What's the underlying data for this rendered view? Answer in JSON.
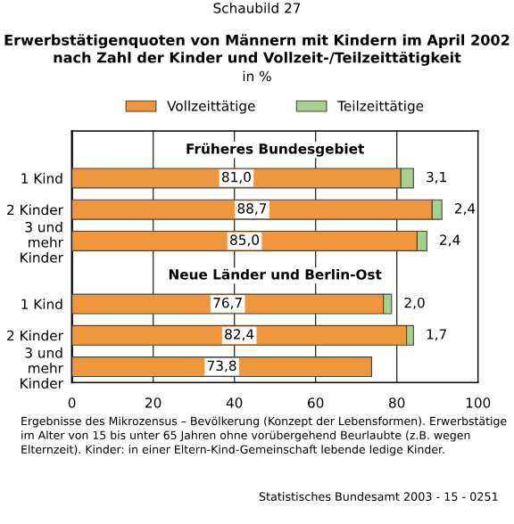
{
  "chart_data": {
    "type": "bar",
    "orientation": "horizontal",
    "stacked": true,
    "title": "Erwerbstätigenquoten von Männern mit Kindern im April 2002\nnach Zahl der Kinder und Vollzeit-/Teilzeittätigkeit",
    "subtitle": "in %",
    "categories": [
      null,
      "1 Kind",
      "2 Kinder",
      "3 und\nmehr\nKinder",
      null,
      "1 Kind",
      "2 Kinder",
      "3 und\nmehr\nKinder"
    ],
    "series": [
      {
        "name": "Vollzeittätige",
        "color": "#f0963c",
        "values": [
          null,
          81.0,
          88.7,
          85.0,
          null,
          76.7,
          82.4,
          73.8
        ],
        "value_labels": [
          null,
          "81,0",
          "88,7",
          "85,0",
          null,
          "76,7",
          "82,4",
          "73,8"
        ]
      },
      {
        "name": "Teilzeittätige",
        "color": "#a8d08d",
        "values": [
          null,
          3.1,
          2.4,
          2.4,
          null,
          2.0,
          1.7,
          null
        ],
        "value_labels": [
          null,
          "3,1",
          "2,4",
          "2,4",
          null,
          "2,0",
          "1,7",
          null
        ]
      }
    ],
    "xlim": [
      0,
      100
    ],
    "xticks": [
      0,
      20,
      40,
      60,
      80,
      100
    ],
    "grid": "x",
    "legend": "top",
    "annotations": [
      "Schaubild 27",
      "Früheres Bundesgebiet",
      "Neue Länder und Berlin-Ost",
      "Ergebnisse des Mikrozensus – Bevölkerung (Konzept der Lebensformen). Erwerbstätige im Alter von 15 bis unter 65 Jahren ohne vorübergehend Beurlaubte (z.B. wegen Elternzeit). Kinder: in einer Eltern-Kind-Gemeinschaft lebende ledige Kinder.",
      "Statistisches Bundesamt 2003 - 15 - 0251"
    ]
  }
}
